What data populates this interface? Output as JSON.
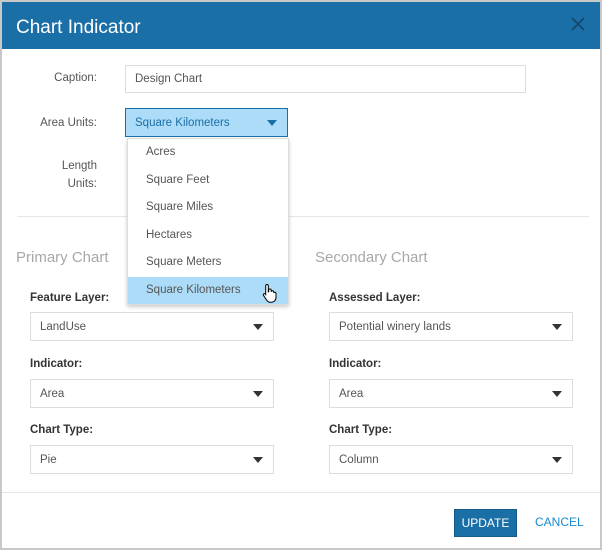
{
  "dialog": {
    "title": "Chart Indicator",
    "close_icon": "close-icon"
  },
  "form": {
    "caption_label": "Caption:",
    "caption_value": "Design Chart",
    "area_units_label": "Area Units:",
    "area_units_value": "Square Kilometers",
    "length_units_label_1": "Length",
    "length_units_label_2": "Units:",
    "area_units_options": [
      "Acres",
      "Square Feet",
      "Square Miles",
      "Hectares",
      "Square Meters",
      "Square Kilometers"
    ],
    "area_units_highlighted": "Square Kilometers"
  },
  "primary": {
    "heading": "Primary Chart",
    "layer_label": "Feature Layer:",
    "layer_value": "LandUse",
    "indicator_label": "Indicator:",
    "indicator_value": "Area",
    "type_label": "Chart Type:",
    "type_value": "Pie"
  },
  "secondary": {
    "heading": "Secondary Chart",
    "layer_label": "Assessed Layer:",
    "layer_value": "Potential winery lands",
    "indicator_label": "Indicator:",
    "indicator_value": "Area",
    "type_label": "Chart Type:",
    "type_value": "Column"
  },
  "footer": {
    "update_label": "UPDATE",
    "cancel_label": "CANCEL"
  },
  "colors": {
    "header": "#1b6fa7",
    "highlight": "#acdcf7",
    "link": "#1b8ad0"
  }
}
